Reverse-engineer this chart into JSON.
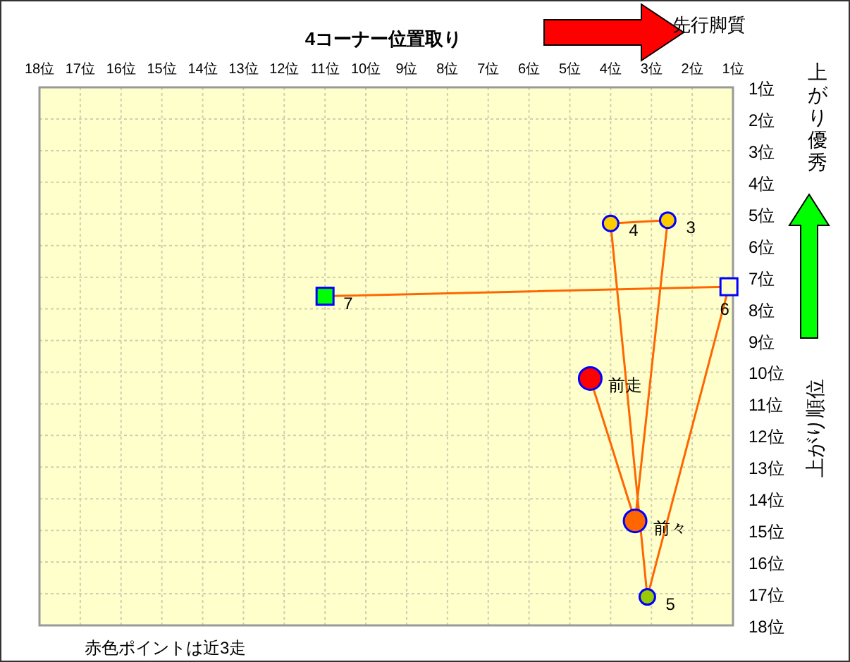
{
  "chart_data": {
    "type": "line",
    "xlabel": "4コーナー位置取り",
    "ylabel": "上がり順位",
    "xlim": [
      18,
      1
    ],
    "ylim": [
      18,
      1
    ],
    "xticks": [
      {
        "value": 18,
        "label": "18位"
      },
      {
        "value": 17,
        "label": "17位"
      },
      {
        "value": 16,
        "label": "16位"
      },
      {
        "value": 15,
        "label": "15位"
      },
      {
        "value": 14,
        "label": "14位"
      },
      {
        "value": 13,
        "label": "13位"
      },
      {
        "value": 12,
        "label": "12位"
      },
      {
        "value": 11,
        "label": "11位"
      },
      {
        "value": 10,
        "label": "10位"
      },
      {
        "value": 9,
        "label": "9位"
      },
      {
        "value": 8,
        "label": "8位"
      },
      {
        "value": 7,
        "label": "7位"
      },
      {
        "value": 6,
        "label": "6位"
      },
      {
        "value": 5,
        "label": "5位"
      },
      {
        "value": 4,
        "label": "4位"
      },
      {
        "value": 3,
        "label": "3位"
      },
      {
        "value": 2,
        "label": "2位"
      },
      {
        "value": 1,
        "label": "1位"
      }
    ],
    "yticks": [
      {
        "value": 1,
        "label": "1位"
      },
      {
        "value": 2,
        "label": "2位"
      },
      {
        "value": 3,
        "label": "3位"
      },
      {
        "value": 4,
        "label": "4位"
      },
      {
        "value": 5,
        "label": "5位"
      },
      {
        "value": 6,
        "label": "6位"
      },
      {
        "value": 7,
        "label": "7位"
      },
      {
        "value": 8,
        "label": "8位"
      },
      {
        "value": 9,
        "label": "9位"
      },
      {
        "value": 10,
        "label": "10位"
      },
      {
        "value": 11,
        "label": "11位"
      },
      {
        "value": 12,
        "label": "12位"
      },
      {
        "value": 13,
        "label": "13位"
      },
      {
        "value": 14,
        "label": "14位"
      },
      {
        "value": 15,
        "label": "15位"
      },
      {
        "value": 16,
        "label": "16位"
      },
      {
        "value": 17,
        "label": "17位"
      },
      {
        "value": 18,
        "label": "18位"
      }
    ],
    "grid": true,
    "series": [
      {
        "color": "#ff6600",
        "marker": "none",
        "x": [
          4.5,
          3.4,
          2.6,
          4.0,
          3.1,
          1.1,
          11.0
        ],
        "values": [
          10.2,
          14.7,
          5.2,
          5.3,
          17.1,
          7.3,
          7.6
        ]
      },
      {
        "type": "bubble",
        "color": "#0000ff",
        "marker": "circle",
        "colors": [
          "#ff0000",
          "#ff6600"
        ],
        "x": [
          4.5,
          3.4
        ],
        "values": [
          10.2,
          14.7
        ],
        "sizes": [
          1,
          1
        ]
      },
      {
        "type": "scatter",
        "color": "#0000ff",
        "marker": "circle",
        "colors": [
          "#ffcc00",
          "#ffcc00",
          "#99cc00"
        ],
        "x": [
          2.6,
          4.0,
          3.1
        ],
        "values": [
          5.2,
          5.3,
          17.1
        ]
      },
      {
        "type": "scatter",
        "color": "#0000ff",
        "marker": "square",
        "colors": [
          "#ffffcc",
          "#00ff00"
        ],
        "x": [
          1.1,
          11.0
        ],
        "values": [
          7.3,
          7.6
        ]
      }
    ],
    "annotations": [
      "先行脚質",
      "上がり優秀",
      "赤色ポイントは近3走",
      {
        "text": "前走",
        "x": 4.5,
        "y": 10.2
      },
      {
        "text": "前々",
        "x": 3.4,
        "y": 14.7
      },
      {
        "text": "3",
        "x": 2.6,
        "y": 5.2
      },
      {
        "text": "4",
        "x": 4.0,
        "y": 5.3
      },
      {
        "text": "5",
        "x": 3.1,
        "y": 17.1
      },
      {
        "text": "6",
        "x": 1.1,
        "y": 7.3
      },
      {
        "text": "7",
        "x": 11.0,
        "y": 7.6
      }
    ]
  }
}
